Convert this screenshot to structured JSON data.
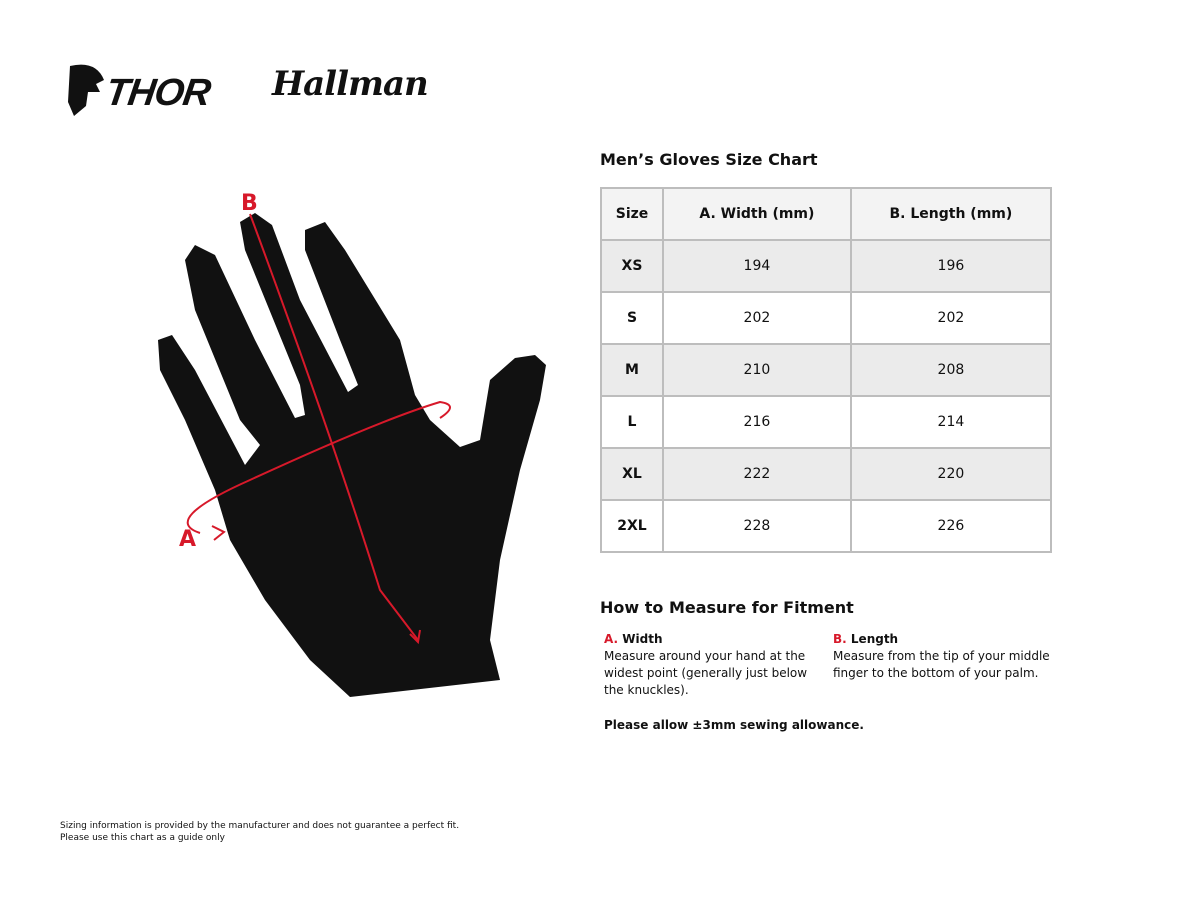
{
  "logos": {
    "thor": "THOR",
    "hallman": "Hallman"
  },
  "diagram": {
    "label_a": "A",
    "label_b": "B",
    "accent_color": "#d7192a"
  },
  "size_chart": {
    "title": "Men’s Gloves Size Chart",
    "headers": [
      "Size",
      "A. Width (mm)",
      "B. Length (mm)"
    ],
    "rows": [
      [
        "XS",
        "194",
        "196"
      ],
      [
        "S",
        "202",
        "202"
      ],
      [
        "M",
        "210",
        "208"
      ],
      [
        "L",
        "216",
        "214"
      ],
      [
        "XL",
        "222",
        "220"
      ],
      [
        "2XL",
        "228",
        "226"
      ]
    ]
  },
  "measure": {
    "title": "How to Measure for Fitment",
    "width": {
      "letter": "A.",
      "label": "Width",
      "text": "Measure around your hand at the widest point (generally just below the knuckles)."
    },
    "length": {
      "letter": "B.",
      "label": "Length",
      "text": "Measure from the tip of your middle finger to the bottom of your palm."
    },
    "allowance": "Please allow ±3mm sewing allowance."
  },
  "footer": {
    "line1": "Sizing information is provided by the manufacturer and does not guarantee a perfect fit.",
    "line2": "Please use this chart as a guide only"
  }
}
